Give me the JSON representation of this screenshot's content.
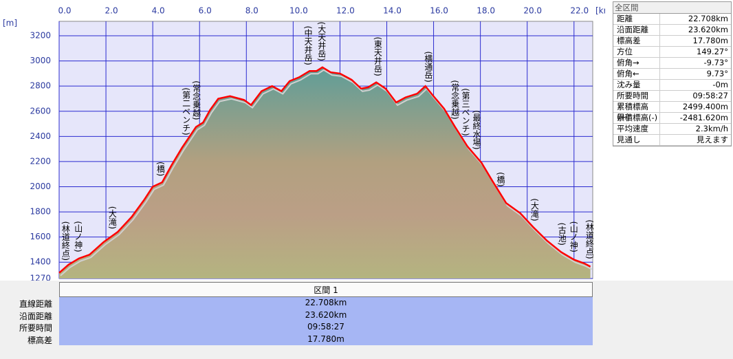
{
  "chart_data": {
    "type": "area",
    "x_unit": "[km]",
    "y_unit": "[m]",
    "xlim": [
      0,
      22.8
    ],
    "ylim": [
      1270,
      3315
    ],
    "xticks": [
      {
        "value": 0,
        "label": "0.0"
      },
      {
        "value": 2,
        "label": "2.0"
      },
      {
        "value": 4,
        "label": "4.0"
      },
      {
        "value": 6,
        "label": "6.0"
      },
      {
        "value": 8,
        "label": "8.0"
      },
      {
        "value": 10,
        "label": "10.0"
      },
      {
        "value": 12,
        "label": "12.0"
      },
      {
        "value": 14,
        "label": "14.0"
      },
      {
        "value": 16,
        "label": "16.0"
      },
      {
        "value": 18,
        "label": "18.0"
      },
      {
        "value": 20,
        "label": "20.0"
      },
      {
        "value": 22,
        "label": "22.0"
      }
    ],
    "yticks": [
      1270,
      1400,
      1600,
      1800,
      2000,
      2200,
      2400,
      2600,
      2800,
      3000,
      3200
    ],
    "grid": true,
    "x": [
      0,
      0.4,
      0.85,
      1.3,
      1.9,
      2.5,
      3.1,
      3.65,
      4.0,
      4.4,
      4.8,
      5.25,
      5.85,
      6.15,
      6.45,
      6.8,
      7.3,
      7.9,
      8.2,
      8.65,
      9.1,
      9.5,
      9.85,
      10.25,
      10.7,
      11.0,
      11.25,
      11.6,
      12.0,
      12.5,
      12.9,
      13.2,
      13.55,
      13.95,
      14.4,
      14.8,
      15.3,
      15.65,
      15.95,
      16.45,
      16.9,
      17.45,
      18.05,
      18.5,
      19.1,
      19.7,
      20.25,
      20.85,
      21.45,
      22.0,
      22.45,
      22.7
    ],
    "series": [
      {
        "color": "#ff0000",
        "values": [
          1315,
          1380,
          1430,
          1460,
          1560,
          1640,
          1760,
          1900,
          2000,
          2035,
          2170,
          2310,
          2475,
          2510,
          2610,
          2700,
          2720,
          2690,
          2650,
          2760,
          2800,
          2760,
          2840,
          2870,
          2920,
          2920,
          2950,
          2910,
          2900,
          2850,
          2780,
          2790,
          2830,
          2780,
          2670,
          2710,
          2740,
          2800,
          2730,
          2620,
          2480,
          2320,
          2190,
          2050,
          1870,
          1790,
          1680,
          1570,
          1480,
          1420,
          1390,
          1365
        ]
      }
    ],
    "annotations": [
      {
        "text": "(林道終点)",
        "x": 0.26
      },
      {
        "text": "(山ノ神)",
        "x": 0.8
      },
      {
        "text": "(大滝)",
        "x": 2.26
      },
      {
        "text": "(橋)",
        "x": 4.32
      },
      {
        "text": "(第二ベンチ)",
        "x": 5.41
      },
      {
        "text": "(常念乗越)",
        "x": 5.85
      },
      {
        "text": "(中天井岳)",
        "x": 10.62
      },
      {
        "text": "(大天井岳)",
        "x": 11.2
      },
      {
        "text": "(東天井岳)",
        "x": 13.6
      },
      {
        "text": "(横通岳)",
        "x": 15.76
      },
      {
        "text": "(常念乗越)",
        "x": 16.9
      },
      {
        "text": "(第三ベンチ)",
        "x": 17.35
      },
      {
        "text": "(最終水場)",
        "x": 17.82
      },
      {
        "text": "(橋)",
        "x": 18.85
      },
      {
        "text": "(大滝)",
        "x": 20.3
      },
      {
        "text": "(古池)",
        "x": 21.47
      },
      {
        "text": "(山ノ神)",
        "x": 21.97
      },
      {
        "text": "(林道終点)",
        "x": 22.65
      }
    ]
  },
  "info_panel": {
    "title": "全区間",
    "rows": [
      [
        "距離",
        "22.708km"
      ],
      [
        "沿面距離",
        "23.620km"
      ],
      [
        "標高差",
        "17.780m"
      ],
      [
        "方位",
        "149.27°"
      ],
      [
        "俯角→",
        "-9.73°"
      ],
      [
        "俯角←",
        "9.73°"
      ],
      [
        "沈み量",
        "-0m"
      ],
      [
        "所要時間",
        "09:58:27"
      ],
      [
        "累積標高(+)",
        "2499.400m"
      ],
      [
        "累積標高(-)",
        "-2481.620m"
      ],
      [
        "平均速度",
        "2.3km/h"
      ],
      [
        "見通し",
        "見えます"
      ]
    ]
  },
  "section_table": {
    "header": "区間 1",
    "rows": [
      [
        "直線距離",
        "22.708km"
      ],
      [
        "沿面距離",
        "23.620km"
      ],
      [
        "所要時間",
        "09:58:27"
      ],
      [
        "標高差",
        "17.780m"
      ]
    ]
  }
}
